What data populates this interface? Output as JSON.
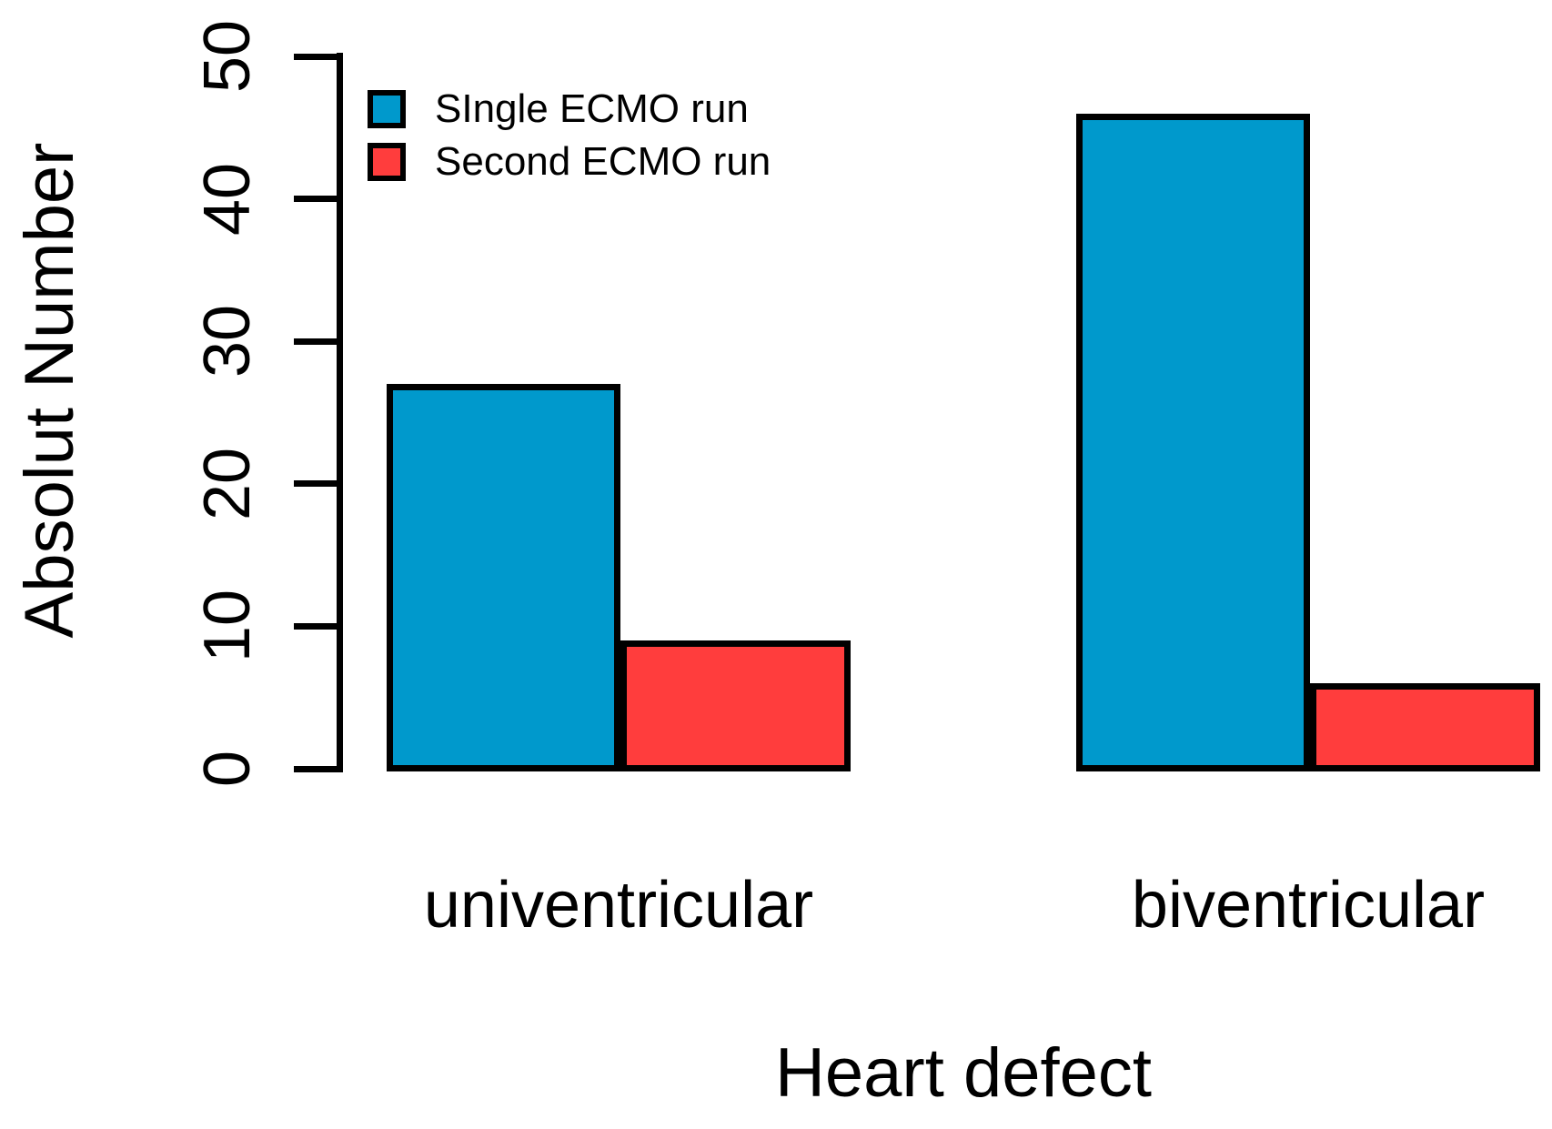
{
  "chart_data": {
    "type": "bar",
    "title": "",
    "categories": [
      "univentricular",
      "biventricular"
    ],
    "series": [
      {
        "name": "SIngle ECMO run",
        "color": "#0099CC",
        "values": [
          27,
          46
        ]
      },
      {
        "name": "Second ECMO run",
        "color": "#FF3D3D",
        "values": [
          9,
          6
        ]
      }
    ],
    "xlabel": "Heart defect",
    "ylabel": "Absolut Number",
    "ylim": [
      0,
      50
    ],
    "yticks": [
      0,
      10,
      20,
      30,
      40,
      50
    ],
    "grid": false,
    "legend_position": "top-left",
    "bar_border_color": "#000000",
    "background": "#FFFFFF"
  }
}
